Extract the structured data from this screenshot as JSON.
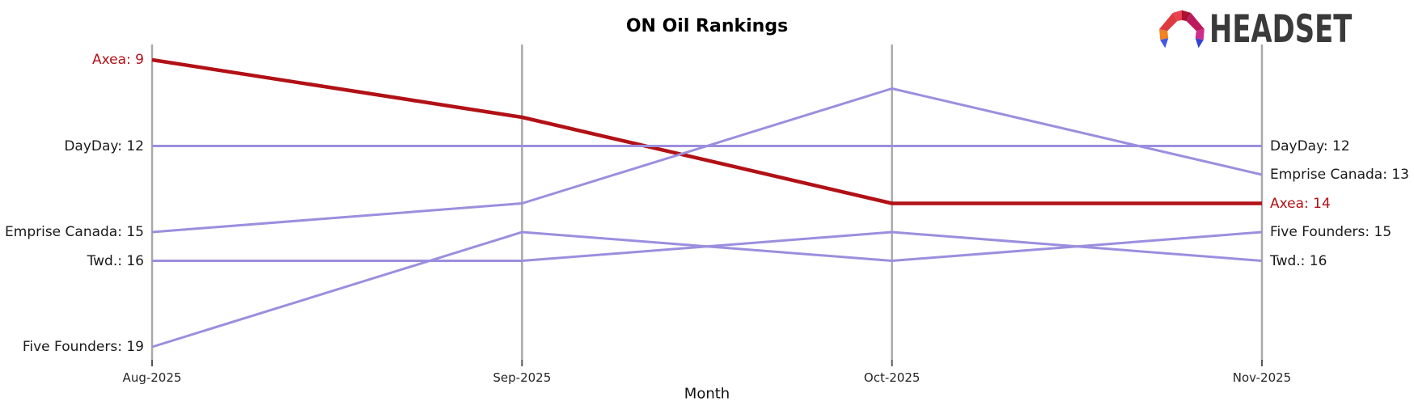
{
  "header": {
    "logo_text": "HEADSET",
    "logo_mark_colors": {
      "orange": "#f28222",
      "red": "#df3a40",
      "red_bright": "#ea4150",
      "red_dark": "#ab1130",
      "magenta": "#bd1a5e",
      "pink": "#cd2d8c",
      "blue_left": "#4156e8",
      "blue_right": "#3443d2"
    }
  },
  "colors": {
    "highlight_line": "#b11116",
    "normal_line": "#9c8ede",
    "gridline": "#a9a9a9",
    "tick_mark": "#555555",
    "label_text": "#1a1a1a"
  },
  "chart_data": {
    "type": "line",
    "variant": "bump_ranking_chart",
    "title": "ON Oil Rankings",
    "xlabel": "Month",
    "x": [
      "Aug-2025",
      "Sep-2025",
      "Oct-2025",
      "Nov-2025"
    ],
    "y_axis": {
      "meaning": "rank (lower number = higher position)",
      "inverted": true,
      "visible_rank_range": [
        9,
        19
      ],
      "gridlines": "vertical only, one per month"
    },
    "legend_position": "inline start/end labels",
    "series": [
      {
        "name": "Axea",
        "values": [
          9,
          11,
          14,
          14
        ],
        "color": "#b11116",
        "width": 4.5,
        "highlighted": true,
        "start_label": "Axea: 9",
        "end_label": "Axea: 14"
      },
      {
        "name": "DayDay",
        "values": [
          12,
          12,
          12,
          12
        ],
        "color": "#9c8ede",
        "width": 3,
        "highlighted": false,
        "start_label": "DayDay: 12",
        "end_label": "DayDay: 12"
      },
      {
        "name": "Emprise Canada",
        "values": [
          15,
          14,
          10,
          13
        ],
        "color": "#9c8ede",
        "width": 3,
        "highlighted": false,
        "start_label": "Emprise Canada: 15",
        "end_label": "Emprise Canada: 13"
      },
      {
        "name": "Twd.",
        "values": [
          16,
          16,
          15,
          16
        ],
        "color": "#9c8ede",
        "width": 3,
        "highlighted": false,
        "start_label": "Twd.: 16",
        "end_label": "Twd.: 16"
      },
      {
        "name": "Five Founders",
        "values": [
          19,
          15,
          16,
          15
        ],
        "color": "#9c8ede",
        "width": 3,
        "highlighted": false,
        "start_label": "Five Founders: 19",
        "end_label": "Five Founders: 15"
      }
    ]
  }
}
